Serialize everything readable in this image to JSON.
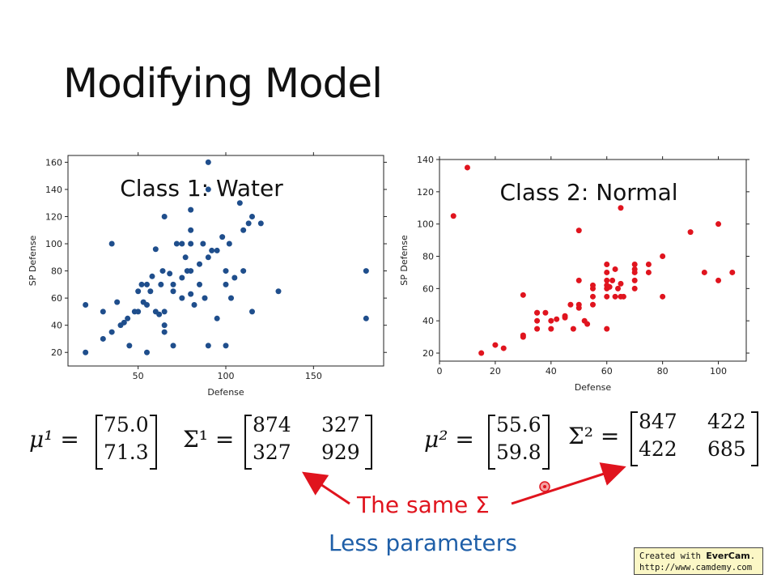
{
  "slide": {
    "title": "Modifying Model",
    "annotation_same": "The same Σ",
    "annotation_less": "Less parameters",
    "colors": {
      "class1": "#1f4e8c",
      "class2": "#e0141e",
      "annotation_red": "#e0141e",
      "annotation_blue": "#1f5fa8"
    }
  },
  "equations": {
    "class1": {
      "mu_symbol": "μ¹ =",
      "mu": [
        "75.0",
        "71.3"
      ],
      "sigma_symbol": "Σ¹ =",
      "sigma": [
        [
          "874",
          "327"
        ],
        [
          "327",
          "929"
        ]
      ]
    },
    "class2": {
      "mu_symbol": "μ² =",
      "mu": [
        "55.6",
        "59.8"
      ],
      "sigma_symbol": "Σ² =",
      "sigma": [
        [
          "847",
          "422"
        ],
        [
          "422",
          "685"
        ]
      ]
    }
  },
  "watermark": {
    "line1_prefix": "Created with ",
    "line1_brand": "EverCam",
    "line1_suffix": ".",
    "line2": "http://www.camdemy.com"
  },
  "chart_data": [
    {
      "type": "scatter",
      "title": "Class 1: Water",
      "xlabel": "Defense",
      "ylabel": "SP Defense",
      "xlim": [
        10,
        190
      ],
      "ylim": [
        10,
        165
      ],
      "xticks": [
        50,
        100,
        150
      ],
      "yticks": [
        20,
        40,
        60,
        80,
        100,
        120,
        140,
        160
      ],
      "color": "#1f4e8c",
      "grid": false,
      "points": [
        [
          20,
          20
        ],
        [
          20,
          55
        ],
        [
          30,
          30
        ],
        [
          30,
          50
        ],
        [
          35,
          100
        ],
        [
          35,
          35
        ],
        [
          38,
          57
        ],
        [
          40,
          40
        ],
        [
          42,
          42
        ],
        [
          44,
          45
        ],
        [
          45,
          25
        ],
        [
          48,
          50
        ],
        [
          50,
          50
        ],
        [
          50,
          65
        ],
        [
          52,
          70
        ],
        [
          53,
          57
        ],
        [
          55,
          70
        ],
        [
          55,
          55
        ],
        [
          55,
          20
        ],
        [
          57,
          65
        ],
        [
          58,
          76
        ],
        [
          60,
          96
        ],
        [
          60,
          50
        ],
        [
          62,
          48
        ],
        [
          63,
          70
        ],
        [
          64,
          80
        ],
        [
          65,
          40
        ],
        [
          65,
          35
        ],
        [
          65,
          120
        ],
        [
          65,
          50
        ],
        [
          68,
          78
        ],
        [
          70,
          25
        ],
        [
          70,
          70
        ],
        [
          70,
          65
        ],
        [
          72,
          100
        ],
        [
          75,
          75
        ],
        [
          75,
          60
        ],
        [
          75,
          100
        ],
        [
          77,
          90
        ],
        [
          78,
          80
        ],
        [
          80,
          100
        ],
        [
          80,
          125
        ],
        [
          80,
          110
        ],
        [
          80,
          80
        ],
        [
          80,
          63
        ],
        [
          82,
          55
        ],
        [
          85,
          85
        ],
        [
          85,
          70
        ],
        [
          87,
          100
        ],
        [
          88,
          60
        ],
        [
          90,
          90
        ],
        [
          90,
          25
        ],
        [
          90,
          160
        ],
        [
          90,
          140
        ],
        [
          92,
          95
        ],
        [
          95,
          45
        ],
        [
          95,
          95
        ],
        [
          98,
          105
        ],
        [
          100,
          25
        ],
        [
          100,
          70
        ],
        [
          100,
          80
        ],
        [
          102,
          100
        ],
        [
          103,
          60
        ],
        [
          105,
          75
        ],
        [
          108,
          130
        ],
        [
          110,
          80
        ],
        [
          110,
          110
        ],
        [
          113,
          115
        ],
        [
          115,
          50
        ],
        [
          115,
          120
        ],
        [
          120,
          115
        ],
        [
          130,
          65
        ],
        [
          180,
          80
        ],
        [
          180,
          45
        ]
      ]
    },
    {
      "type": "scatter",
      "title": "Class 2: Normal",
      "xlabel": "Defense",
      "ylabel": "SP Defense",
      "xlim": [
        0,
        110
      ],
      "ylim": [
        15,
        140
      ],
      "xticks": [
        0,
        20,
        40,
        60,
        80,
        100
      ],
      "yticks": [
        20,
        40,
        60,
        80,
        100,
        120,
        140
      ],
      "color": "#e0141e",
      "grid": false,
      "points": [
        [
          5,
          105
        ],
        [
          10,
          135
        ],
        [
          15,
          20
        ],
        [
          20,
          25
        ],
        [
          23,
          23
        ],
        [
          30,
          30
        ],
        [
          30,
          31
        ],
        [
          30,
          56
        ],
        [
          35,
          45
        ],
        [
          35,
          40
        ],
        [
          35,
          35
        ],
        [
          35,
          45
        ],
        [
          38,
          45
        ],
        [
          40,
          35
        ],
        [
          40,
          40
        ],
        [
          42,
          41
        ],
        [
          45,
          42
        ],
        [
          45,
          43
        ],
        [
          47,
          50
        ],
        [
          48,
          35
        ],
        [
          50,
          48
        ],
        [
          50,
          50
        ],
        [
          50,
          65
        ],
        [
          50,
          96
        ],
        [
          52,
          40
        ],
        [
          53,
          38
        ],
        [
          55,
          50
        ],
        [
          55,
          55
        ],
        [
          55,
          60
        ],
        [
          55,
          62
        ],
        [
          60,
          75
        ],
        [
          60,
          70
        ],
        [
          60,
          65
        ],
        [
          60,
          60
        ],
        [
          60,
          62
        ],
        [
          60,
          55
        ],
        [
          60,
          35
        ],
        [
          61,
          61
        ],
        [
          62,
          65
        ],
        [
          63,
          72
        ],
        [
          63,
          55
        ],
        [
          64,
          60
        ],
        [
          65,
          55
        ],
        [
          65,
          63
        ],
        [
          65,
          110
        ],
        [
          66,
          55
        ],
        [
          70,
          75
        ],
        [
          70,
          72
        ],
        [
          70,
          65
        ],
        [
          70,
          60
        ],
        [
          70,
          70
        ],
        [
          75,
          75
        ],
        [
          75,
          70
        ],
        [
          80,
          80
        ],
        [
          80,
          55
        ],
        [
          90,
          95
        ],
        [
          95,
          70
        ],
        [
          100,
          100
        ],
        [
          100,
          65
        ],
        [
          105,
          70
        ]
      ]
    }
  ]
}
